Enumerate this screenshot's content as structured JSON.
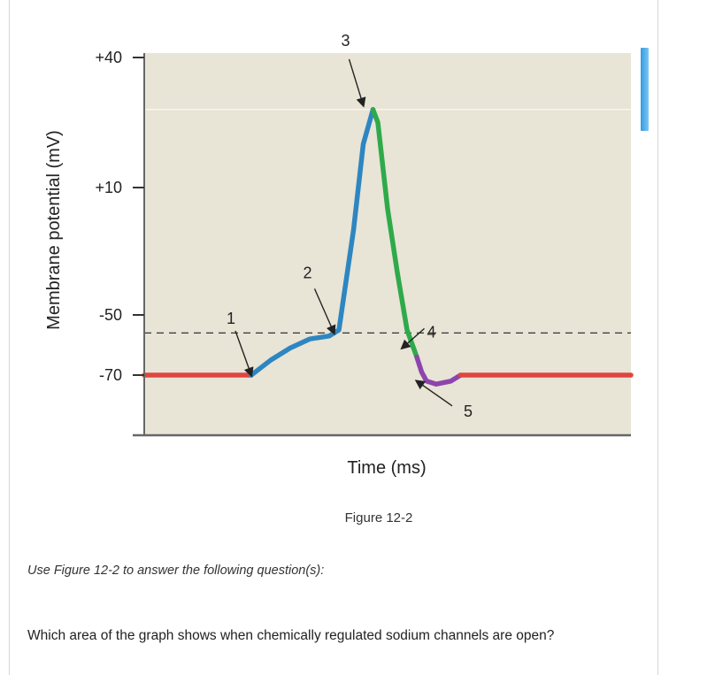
{
  "figure": {
    "caption": "Figure 12-2"
  },
  "instruction": "Use Figure 12-2 to answer the following question(s):",
  "question": "Which area of the graph shows when chemically regulated sodium channels are open?",
  "colors": {
    "plot_bg": "#e8e4d6",
    "resting": "#e0463f",
    "depolarizing": "#2e86c1",
    "repolarizing": "#2eaa4a",
    "hyperpolarizing": "#8e44ad",
    "axis": "#666666",
    "accent_bar": "#2f9be2"
  },
  "chart_data": {
    "type": "line",
    "title": "",
    "xlabel": "Time (ms)",
    "ylabel": "Membrane potential (mV)",
    "y_ticks": [
      {
        "value": 40,
        "label": "+40"
      },
      {
        "value": 10,
        "label": "+10"
      },
      {
        "value": -50,
        "label": "-50"
      },
      {
        "value": -70,
        "label": "-70"
      }
    ],
    "threshold_mV": -56,
    "peak_mV": 28,
    "grid": false,
    "series": [
      {
        "key": "resting_start",
        "color": "#e0463f",
        "points": [
          [
            0,
            -70
          ],
          [
            22,
            -70
          ]
        ]
      },
      {
        "key": "depolarizing",
        "color": "#2e86c1",
        "points": [
          [
            22,
            -70
          ],
          [
            26,
            -65
          ],
          [
            30,
            -61
          ],
          [
            34,
            -58
          ],
          [
            38,
            -57
          ],
          [
            40,
            -55
          ],
          [
            43,
            -10
          ],
          [
            45,
            20
          ],
          [
            47,
            28
          ]
        ]
      },
      {
        "key": "repolarizing",
        "color": "#2eaa4a",
        "points": [
          [
            47,
            28
          ],
          [
            48,
            25
          ],
          [
            50,
            0
          ],
          [
            52,
            -30
          ],
          [
            54,
            -55
          ],
          [
            56,
            -64
          ]
        ]
      },
      {
        "key": "hyperpolarizing",
        "color": "#8e44ad",
        "points": [
          [
            56,
            -64
          ],
          [
            57,
            -69
          ],
          [
            58,
            -72
          ],
          [
            60,
            -73
          ],
          [
            63,
            -72
          ],
          [
            65,
            -70
          ]
        ]
      },
      {
        "key": "resting_end",
        "color": "#e0463f",
        "points": [
          [
            65,
            -70
          ],
          [
            100,
            -70
          ]
        ]
      }
    ],
    "annotations": [
      {
        "label": "1",
        "target": [
          22,
          -70
        ]
      },
      {
        "label": "2",
        "target": [
          39,
          -56
        ]
      },
      {
        "label": "3",
        "target": [
          45,
          29
        ]
      },
      {
        "label": "4",
        "target": [
          53,
          -61
        ]
      },
      {
        "label": "5",
        "target": [
          56,
          -72
        ]
      }
    ]
  }
}
